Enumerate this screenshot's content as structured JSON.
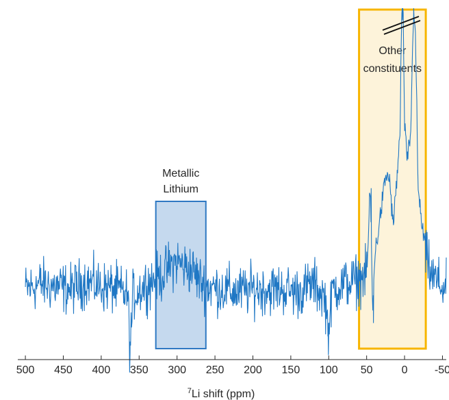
{
  "chart_data": {
    "type": "line",
    "title": "",
    "xlabel": "Li shift (ppm)",
    "xlabel_superscript": "7",
    "ylabel": "",
    "x_reversed": true,
    "xlim": [
      510,
      -55
    ],
    "ylim": [
      -0.25,
      1.0
    ],
    "x_ticks": [
      500,
      450,
      400,
      350,
      300,
      250,
      200,
      150,
      100,
      50,
      0,
      -50
    ],
    "x_tick_labels": [
      "500",
      "450",
      "400",
      "350",
      "300",
      "250",
      "200",
      "150",
      "100",
      "50",
      "0",
      "-50"
    ],
    "y_axis_visible": false,
    "grid": false,
    "line_color": "#1f77c4",
    "axis_break": true,
    "regions": [
      {
        "label_lines": [
          "Metallic",
          "Lithium"
        ],
        "x_start": 328,
        "x_end": 262,
        "fill": "#c5d9ee",
        "stroke": "#2e78c2"
      },
      {
        "label_lines": [
          "Other",
          "constituents"
        ],
        "x_start": 60,
        "x_end": -28,
        "fill": "#fdf3da",
        "stroke": "#f7b500"
      }
    ],
    "series": [
      {
        "name": "",
        "description": "Noisy 7Li NMR spectrum; baseline near 0 with noise; weak broad feature around 300 ppm; dip near 362 ppm; strong multi-peak signal between ~45 and -30 ppm with truncated maxima near 5 and -12 ppm",
        "x": [
          500,
          480,
          460,
          440,
          420,
          400,
          380,
          365,
          362,
          358,
          340,
          320,
          310,
          300,
          290,
          280,
          270,
          260,
          240,
          220,
          200,
          180,
          160,
          140,
          120,
          105,
          100,
          95,
          80,
          65,
          50,
          45,
          42,
          40,
          35,
          30,
          25,
          20,
          15,
          10,
          6,
          4,
          2,
          0,
          -3,
          -8,
          -12,
          -14,
          -18,
          -22,
          -28,
          -35,
          -45,
          -55
        ],
        "y": [
          0.0,
          0.02,
          0.01,
          0.0,
          0.03,
          0.01,
          0.0,
          -0.02,
          -0.22,
          -0.02,
          0.02,
          0.05,
          0.08,
          0.1,
          0.08,
          0.07,
          0.03,
          0.01,
          0.0,
          -0.01,
          0.0,
          0.0,
          0.0,
          -0.01,
          0.02,
          -0.03,
          -0.15,
          0.0,
          0.02,
          0.03,
          0.05,
          0.35,
          -0.1,
          0.1,
          0.2,
          0.3,
          0.4,
          0.4,
          0.22,
          0.4,
          0.55,
          0.95,
          1.0,
          0.6,
          0.45,
          0.55,
          1.0,
          0.95,
          0.35,
          0.25,
          0.12,
          0.05,
          0.02,
          0.0
        ]
      }
    ]
  }
}
